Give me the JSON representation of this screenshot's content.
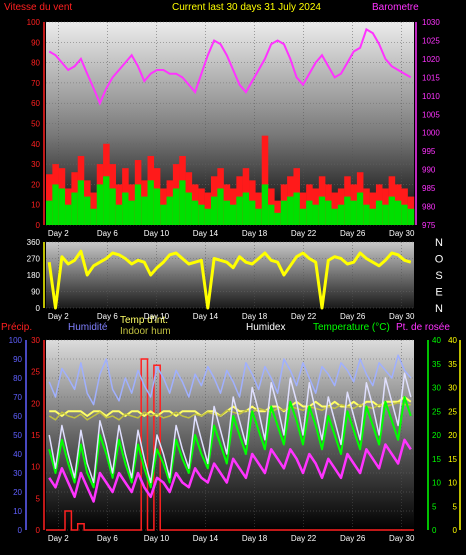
{
  "colors": {
    "wind_label": "#ff2020",
    "wind_series": "#ff1a1a",
    "gust_series": "#00e000",
    "baro": "#ff33ff",
    "title": "#ffff00",
    "wind_dir": "#ffff00",
    "compass": "#ffffff",
    "precip": "#ff2020",
    "humidity_label": "#8080ff",
    "temp_int": "#ffff66",
    "indoor_hum": "#c0c040",
    "humidex": "#ffffff",
    "temperature": "#00ff00",
    "dewpoint": "#ff33ff",
    "outer_humidity_line": "#a0b0ff",
    "axis_blue": "#6060ff",
    "axis_yellow": "#ffff00"
  },
  "header": {
    "wind_label": "Vitesse du vent",
    "title": "Current last 30 days 31 July 2024",
    "baro_label": "Barometre"
  },
  "bottom_header": {
    "precip": "Précip.",
    "humidity": "Humidité",
    "temp_int": "Temp d'int.",
    "indoor_hum": "Indoor hum",
    "humidex": "Humidex",
    "temperature": "Temperature (°C)",
    "dewpoint": "Pt. de rosée"
  },
  "compass": [
    "N",
    "O",
    "S",
    "E",
    "N"
  ],
  "x_labels": [
    "Day 2",
    "Day 6",
    "Day 10",
    "Day 14",
    "Day 18",
    "Day 22",
    "Day 26",
    "Day 30"
  ],
  "axes": {
    "wind_left": [
      "100",
      "90",
      "80",
      "70",
      "60",
      "50",
      "40",
      "30",
      "20",
      "10",
      "0"
    ],
    "baro_right": [
      "1030",
      "1025",
      "1020",
      "1015",
      "1010",
      "1005",
      "1000",
      "995",
      "990",
      "985",
      "980",
      "975"
    ],
    "dir_left": [
      "360",
      "270",
      "180",
      "90",
      "0"
    ],
    "hum_left": [
      "100",
      "90",
      "80",
      "70",
      "60",
      "50",
      "40",
      "30",
      "20",
      "10",
      "0"
    ],
    "precip_left": [
      "30",
      "25",
      "20",
      "15",
      "10",
      "5",
      "0"
    ],
    "temp_right_a": [
      "40",
      "35",
      "30",
      "25",
      "20",
      "15",
      "10",
      "5",
      "0"
    ],
    "temp_right_b": [
      "40",
      "35",
      "30",
      "25",
      "20",
      "15",
      "10",
      "5",
      "0"
    ]
  },
  "chart_data": [
    {
      "type": "area",
      "panel": "wind_pressure",
      "ylim_left": [
        0,
        100
      ],
      "ylim_right": [
        975,
        1030
      ],
      "series": [
        {
          "name": "Vitesse du vent",
          "axis": "left",
          "values": [
            12,
            20,
            18,
            10,
            16,
            22,
            14,
            8,
            20,
            24,
            18,
            10,
            16,
            12,
            20,
            14,
            22,
            18,
            10,
            14,
            18,
            22,
            16,
            12,
            10,
            8,
            14,
            18,
            12,
            10,
            14,
            16,
            12,
            8,
            20,
            10,
            6,
            12,
            14,
            16,
            8,
            12,
            10,
            14,
            12,
            8,
            10,
            14,
            12,
            16,
            10,
            8,
            12,
            10,
            14,
            12,
            10,
            8
          ]
        },
        {
          "name": "Rafales",
          "axis": "left",
          "values": [
            25,
            30,
            28,
            18,
            26,
            34,
            22,
            16,
            30,
            40,
            30,
            20,
            28,
            20,
            32,
            22,
            34,
            28,
            18,
            22,
            30,
            34,
            26,
            20,
            18,
            16,
            24,
            28,
            20,
            18,
            24,
            28,
            22,
            16,
            44,
            18,
            12,
            20,
            24,
            28,
            16,
            20,
            18,
            24,
            20,
            16,
            18,
            24,
            20,
            26,
            18,
            16,
            20,
            18,
            24,
            20,
            18,
            14
          ]
        },
        {
          "name": "Barometre",
          "axis": "right",
          "values": [
            1022,
            1021,
            1019,
            1017,
            1018,
            1020,
            1016,
            1012,
            1008,
            1012,
            1015,
            1017,
            1019,
            1021,
            1018,
            1014,
            1016,
            1017,
            1017,
            1016,
            1016,
            1015,
            1013,
            1011,
            1016,
            1021,
            1025,
            1024,
            1021,
            1017,
            1013,
            1011,
            1014,
            1017,
            1020,
            1024,
            1025,
            1024,
            1020,
            1015,
            1013,
            1016,
            1019,
            1021,
            1018,
            1015,
            1016,
            1019,
            1022,
            1023,
            1028,
            1027,
            1024,
            1020,
            1018,
            1017,
            1016,
            1015
          ]
        }
      ]
    },
    {
      "type": "line",
      "panel": "wind_direction",
      "ylim": [
        0,
        360
      ],
      "series": [
        {
          "values": [
            250,
            0,
            280,
            240,
            260,
            310,
            180,
            230,
            250,
            270,
            300,
            290,
            270,
            240,
            260,
            250,
            180,
            220,
            250,
            290,
            300,
            270,
            240,
            250,
            260,
            0,
            270,
            260,
            250,
            220,
            280,
            250,
            240,
            270,
            300,
            260,
            250,
            180,
            230,
            280,
            300,
            270,
            250,
            0,
            260,
            280,
            270,
            240,
            250,
            300,
            270,
            250,
            230,
            260,
            300,
            290,
            260,
            250
          ]
        }
      ]
    },
    {
      "type": "line",
      "panel": "temperature_humidity",
      "ylim_left_hum": [
        0,
        100
      ],
      "ylim_left_precip": [
        0,
        30
      ],
      "ylim_right": [
        0,
        40
      ],
      "series": [
        {
          "name": "Précip.",
          "axis": "precip",
          "values": [
            0,
            0,
            0,
            3,
            0,
            1,
            0,
            0,
            0,
            0,
            0,
            0,
            0,
            0,
            0,
            27,
            0,
            26,
            0,
            0,
            0,
            0,
            0,
            0,
            0,
            0,
            0,
            0,
            0,
            0,
            0,
            0,
            0,
            0,
            0,
            0,
            0,
            0,
            0,
            0,
            0,
            0,
            0,
            0,
            0,
            0,
            0,
            0,
            0,
            0,
            0,
            0,
            0,
            0,
            0,
            0,
            0,
            0
          ]
        },
        {
          "name": "Humidité",
          "axis": "hum",
          "values": [
            78,
            70,
            85,
            80,
            74,
            88,
            72,
            66,
            82,
            90,
            74,
            68,
            80,
            72,
            84,
            76,
            70,
            86,
            80,
            72,
            84,
            78,
            70,
            82,
            76,
            86,
            80,
            72,
            84,
            78,
            70,
            88,
            82,
            74,
            86,
            80,
            72,
            90,
            84,
            76,
            88,
            80,
            72,
            86,
            82,
            76,
            88,
            84,
            78,
            90,
            82,
            76,
            88,
            84,
            80,
            92,
            84,
            80
          ]
        },
        {
          "name": "Temp d'int.",
          "axis": "right",
          "values": [
            25,
            25,
            24,
            25,
            25,
            25,
            24,
            25,
            25,
            24,
            25,
            25,
            24,
            25,
            25,
            24,
            25,
            24,
            25,
            25,
            24,
            25,
            25,
            25,
            24,
            25,
            25,
            24,
            25,
            26,
            25,
            25,
            26,
            25,
            25,
            26,
            26,
            25,
            26,
            27,
            26,
            26,
            27,
            26,
            26,
            27,
            26,
            26,
            27,
            26,
            27,
            27,
            26,
            27,
            27,
            27,
            28,
            27
          ]
        },
        {
          "name": "Indoor hum",
          "axis": "hum",
          "values": [
            60,
            58,
            62,
            60,
            59,
            61,
            58,
            60,
            62,
            59,
            60,
            58,
            61,
            60,
            59,
            62,
            60,
            61,
            59,
            60,
            62,
            60,
            59,
            61,
            60,
            62,
            61,
            60,
            63,
            62,
            61,
            63,
            62,
            64,
            63,
            62,
            64,
            63,
            65,
            64,
            63,
            65,
            64,
            63,
            65,
            64,
            66,
            65,
            64,
            66,
            65,
            64,
            66,
            65,
            66,
            67,
            66,
            66
          ]
        },
        {
          "name": "Temperature (°C)",
          "axis": "right",
          "values": [
            17,
            12,
            19,
            14,
            10,
            18,
            12,
            9,
            20,
            16,
            11,
            19,
            14,
            10,
            18,
            13,
            9,
            17,
            14,
            10,
            19,
            15,
            12,
            20,
            16,
            13,
            22,
            18,
            14,
            24,
            20,
            16,
            25,
            21,
            17,
            26,
            22,
            18,
            27,
            23,
            18,
            26,
            22,
            17,
            24,
            20,
            16,
            25,
            21,
            17,
            26,
            22,
            18,
            27,
            23,
            19,
            28,
            24
          ]
        },
        {
          "name": "Pt. de rosée",
          "axis": "right",
          "values": [
            11,
            9,
            13,
            10,
            7,
            12,
            9,
            6,
            12,
            10,
            8,
            12,
            10,
            8,
            12,
            9,
            7,
            11,
            10,
            8,
            12,
            10,
            9,
            13,
            11,
            10,
            14,
            12,
            10,
            15,
            13,
            11,
            16,
            14,
            12,
            17,
            15,
            13,
            17,
            15,
            12,
            16,
            14,
            11,
            15,
            13,
            11,
            16,
            14,
            12,
            17,
            15,
            13,
            18,
            16,
            14,
            19,
            17
          ]
        },
        {
          "name": "Humidex",
          "axis": "right",
          "values": [
            20,
            13,
            22,
            16,
            11,
            21,
            14,
            10,
            23,
            18,
            12,
            22,
            16,
            11,
            21,
            15,
            10,
            20,
            16,
            11,
            22,
            17,
            13,
            24,
            19,
            14,
            26,
            21,
            16,
            28,
            23,
            18,
            30,
            25,
            19,
            31,
            26,
            20,
            32,
            27,
            20,
            31,
            25,
            19,
            28,
            23,
            18,
            29,
            24,
            19,
            31,
            26,
            20,
            32,
            27,
            22,
            33,
            28
          ]
        }
      ]
    }
  ]
}
